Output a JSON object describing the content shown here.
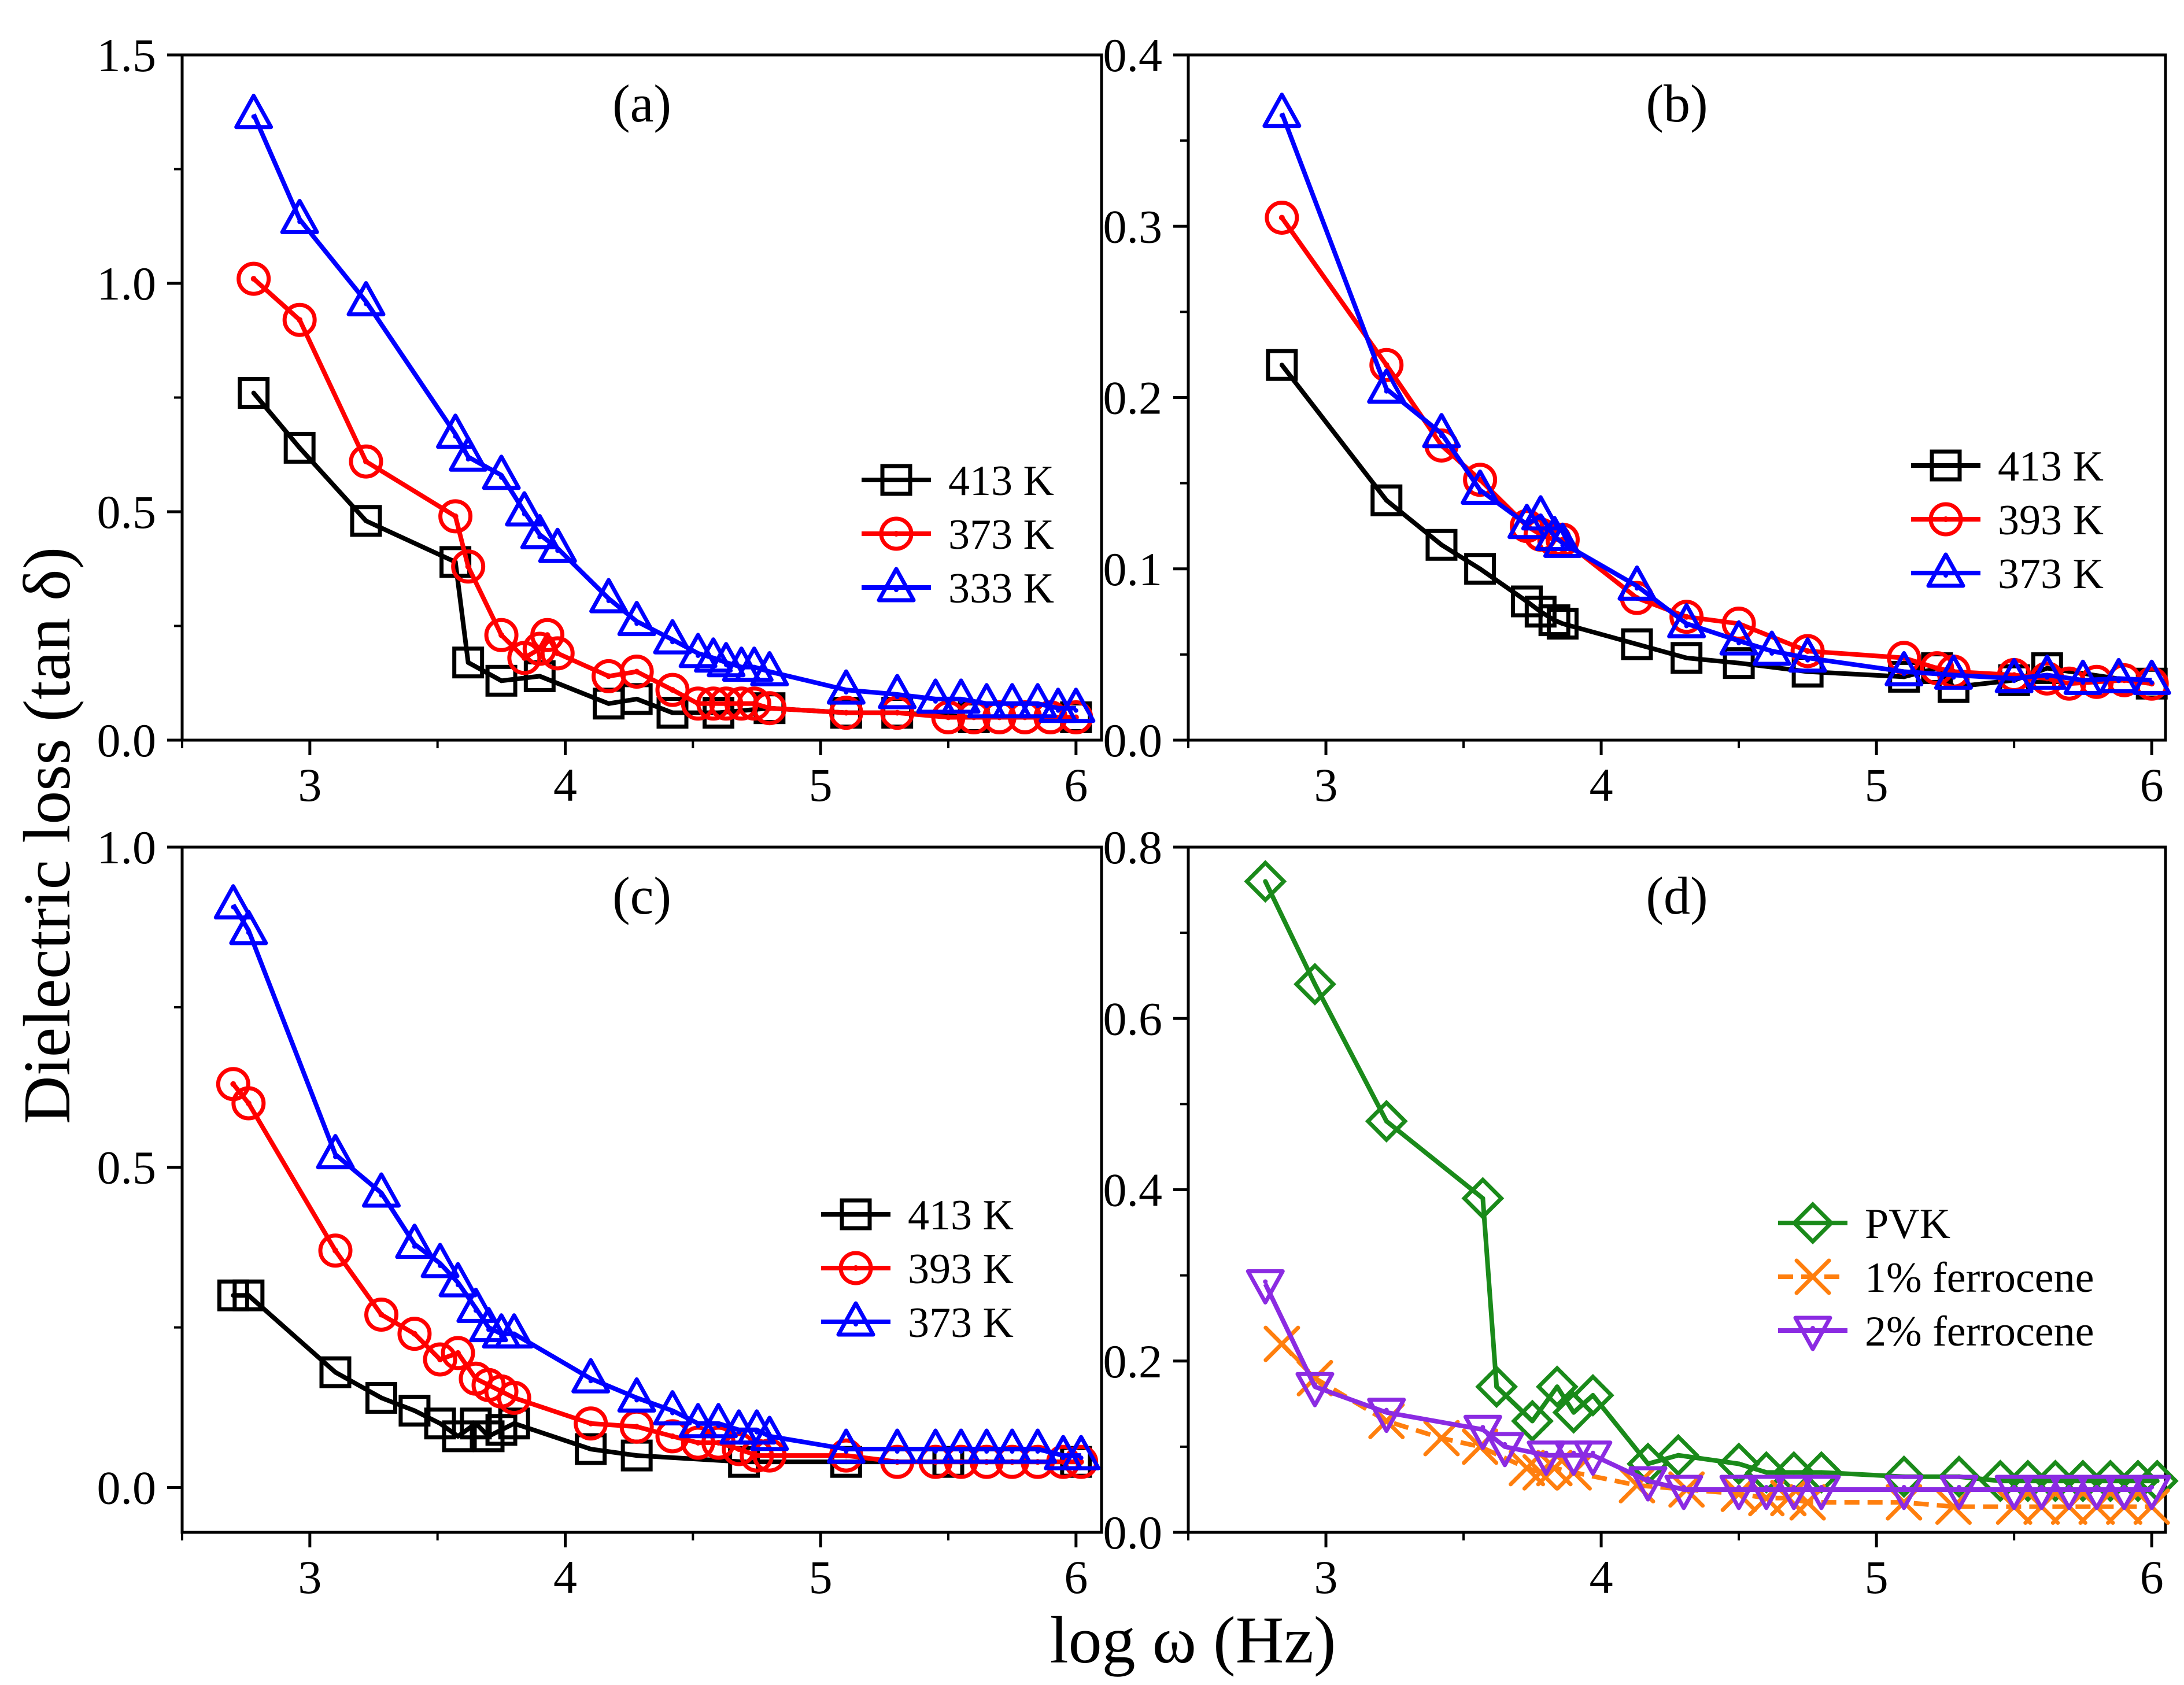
{
  "figure": {
    "ylabel": "Dielectric loss (tan δ)",
    "xlabel": "log ω (Hz)"
  },
  "chart_data": [
    {
      "id": "a",
      "type": "line",
      "title": "(a)",
      "xlim": [
        2.5,
        6.1
      ],
      "ylim": [
        0,
        1.5
      ],
      "xticks": [
        3,
        4,
        5,
        6
      ],
      "xtick_labels": [
        "3",
        "4",
        "5",
        "6"
      ],
      "yticks": [
        0,
        0.5,
        1.0,
        1.5
      ],
      "ytick_labels": [
        "0.0",
        "0.5",
        "1.0",
        "1.5"
      ],
      "legend_position": "middle-right",
      "series": [
        {
          "name": "413 K",
          "color": "#000000",
          "marker": "square",
          "dashed": false,
          "x": [
            2.78,
            2.96,
            3.22,
            3.57,
            3.62,
            3.75,
            3.9,
            4.17,
            4.28,
            4.42,
            4.6,
            4.8,
            5.1,
            5.3,
            5.6,
            6.0
          ],
          "y": [
            0.76,
            0.64,
            0.48,
            0.39,
            0.17,
            0.13,
            0.14,
            0.08,
            0.09,
            0.06,
            0.06,
            0.07,
            0.06,
            0.06,
            0.05,
            0.05
          ]
        },
        {
          "name": "373 K",
          "color": "#ff0000",
          "marker": "circle",
          "dashed": false,
          "x": [
            2.78,
            2.96,
            3.22,
            3.57,
            3.62,
            3.75,
            3.84,
            3.9,
            3.93,
            3.97,
            4.17,
            4.28,
            4.42,
            4.52,
            4.58,
            4.63,
            4.69,
            4.74,
            4.8,
            5.1,
            5.3,
            5.5,
            5.6,
            5.7,
            5.8,
            5.9,
            6.0
          ],
          "y": [
            1.01,
            0.92,
            0.61,
            0.49,
            0.38,
            0.23,
            0.18,
            0.2,
            0.23,
            0.19,
            0.14,
            0.15,
            0.11,
            0.08,
            0.08,
            0.08,
            0.08,
            0.08,
            0.07,
            0.06,
            0.06,
            0.05,
            0.05,
            0.05,
            0.05,
            0.05,
            0.05
          ]
        },
        {
          "name": "333 K",
          "color": "#0000ff",
          "marker": "triangle-up",
          "dashed": false,
          "x": [
            2.78,
            2.96,
            3.22,
            3.57,
            3.62,
            3.75,
            3.84,
            3.9,
            3.97,
            4.17,
            4.28,
            4.42,
            4.52,
            4.58,
            4.63,
            4.69,
            4.74,
            4.8,
            5.1,
            5.3,
            5.45,
            5.55,
            5.65,
            5.75,
            5.85,
            5.93,
            6.0
          ],
          "y": [
            1.37,
            1.14,
            0.96,
            0.67,
            0.62,
            0.58,
            0.5,
            0.45,
            0.42,
            0.31,
            0.26,
            0.22,
            0.19,
            0.18,
            0.17,
            0.16,
            0.16,
            0.15,
            0.11,
            0.1,
            0.09,
            0.09,
            0.08,
            0.08,
            0.08,
            0.07,
            0.07
          ]
        }
      ]
    },
    {
      "id": "b",
      "type": "line",
      "title": "(b)",
      "xlim": [
        2.5,
        6.05
      ],
      "ylim": [
        0,
        0.4
      ],
      "xticks": [
        3,
        4,
        5,
        6
      ],
      "xtick_labels": [
        "3",
        "4",
        "5",
        "6"
      ],
      "yticks": [
        0,
        0.1,
        0.2,
        0.3,
        0.4
      ],
      "ytick_labels": [
        "0.0",
        "0.1",
        "0.2",
        "0.3",
        "0.4"
      ],
      "legend_position": "top-right",
      "series": [
        {
          "name": "413 K",
          "color": "#000000",
          "marker": "square",
          "dashed": false,
          "x": [
            2.84,
            3.22,
            3.42,
            3.56,
            3.73,
            3.78,
            3.83,
            3.86,
            4.13,
            4.31,
            4.5,
            4.75,
            5.1,
            5.22,
            5.28,
            5.5,
            5.62,
            6.0
          ],
          "y": [
            0.219,
            0.14,
            0.114,
            0.1,
            0.081,
            0.075,
            0.07,
            0.068,
            0.056,
            0.048,
            0.045,
            0.04,
            0.037,
            0.042,
            0.031,
            0.035,
            0.042,
            0.033
          ]
        },
        {
          "name": "393 K",
          "color": "#ff0000",
          "marker": "circle",
          "dashed": false,
          "x": [
            2.84,
            3.22,
            3.42,
            3.56,
            3.73,
            3.78,
            3.83,
            3.86,
            4.13,
            4.31,
            4.5,
            4.75,
            5.1,
            5.22,
            5.28,
            5.5,
            5.62,
            5.7,
            5.8,
            5.9,
            6.0
          ],
          "y": [
            0.305,
            0.219,
            0.172,
            0.152,
            0.125,
            0.12,
            0.117,
            0.117,
            0.083,
            0.072,
            0.068,
            0.052,
            0.048,
            0.042,
            0.04,
            0.038,
            0.036,
            0.033,
            0.034,
            0.035,
            0.033
          ]
        },
        {
          "name": "373 K",
          "color": "#0000ff",
          "marker": "triangle-up",
          "dashed": false,
          "x": [
            2.84,
            3.22,
            3.42,
            3.56,
            3.73,
            3.78,
            3.83,
            3.86,
            4.13,
            4.31,
            4.5,
            4.62,
            4.75,
            5.1,
            5.28,
            5.5,
            5.62,
            5.75,
            5.88,
            6.0
          ],
          "y": [
            0.366,
            0.205,
            0.179,
            0.146,
            0.126,
            0.131,
            0.119,
            0.115,
            0.09,
            0.068,
            0.058,
            0.052,
            0.048,
            0.04,
            0.038,
            0.036,
            0.038,
            0.035,
            0.036,
            0.035
          ]
        }
      ]
    },
    {
      "id": "c",
      "type": "line",
      "title": "(c)",
      "xlim": [
        2.5,
        6.1
      ],
      "ylim": [
        -0.07,
        1.0
      ],
      "xticks": [
        3,
        4,
        5,
        6
      ],
      "xtick_labels": [
        "3",
        "4",
        "5",
        "6"
      ],
      "yticks": [
        0,
        0.5,
        1.0
      ],
      "ytick_labels": [
        "0.0",
        "0.5",
        "1.0"
      ],
      "legend_position": "middle-right",
      "series": [
        {
          "name": "413 K",
          "color": "#000000",
          "marker": "square",
          "dashed": false,
          "x": [
            2.7,
            2.76,
            3.1,
            3.28,
            3.41,
            3.51,
            3.58,
            3.65,
            3.7,
            3.75,
            3.8,
            4.1,
            4.28,
            4.7,
            5.1,
            5.5,
            6.0
          ],
          "y": [
            0.3,
            0.3,
            0.18,
            0.14,
            0.12,
            0.1,
            0.08,
            0.1,
            0.08,
            0.09,
            0.1,
            0.06,
            0.05,
            0.04,
            0.04,
            0.04,
            0.04
          ]
        },
        {
          "name": "393 K",
          "color": "#ff0000",
          "marker": "circle",
          "dashed": false,
          "x": [
            2.7,
            2.76,
            3.1,
            3.28,
            3.41,
            3.51,
            3.58,
            3.65,
            3.7,
            3.75,
            3.8,
            4.1,
            4.28,
            4.42,
            4.52,
            4.6,
            4.68,
            4.75,
            4.8,
            5.1,
            5.3,
            5.45,
            5.55,
            5.65,
            5.75,
            5.85,
            5.95,
            6.02
          ],
          "y": [
            0.63,
            0.6,
            0.37,
            0.27,
            0.24,
            0.2,
            0.21,
            0.17,
            0.16,
            0.15,
            0.14,
            0.1,
            0.095,
            0.08,
            0.07,
            0.07,
            0.06,
            0.05,
            0.05,
            0.05,
            0.04,
            0.04,
            0.04,
            0.04,
            0.04,
            0.04,
            0.04,
            0.04
          ]
        },
        {
          "name": "373 K",
          "color": "#0000ff",
          "marker": "triangle-up",
          "dashed": false,
          "x": [
            2.7,
            2.76,
            3.1,
            3.28,
            3.41,
            3.51,
            3.58,
            3.65,
            3.7,
            3.75,
            3.8,
            4.1,
            4.28,
            4.42,
            4.52,
            4.6,
            4.68,
            4.75,
            4.8,
            5.1,
            5.3,
            5.45,
            5.55,
            5.65,
            5.75,
            5.85,
            5.95,
            6.02
          ],
          "y": [
            0.91,
            0.87,
            0.52,
            0.46,
            0.38,
            0.35,
            0.32,
            0.28,
            0.25,
            0.24,
            0.24,
            0.17,
            0.14,
            0.12,
            0.1,
            0.1,
            0.09,
            0.09,
            0.08,
            0.06,
            0.06,
            0.06,
            0.06,
            0.06,
            0.06,
            0.06,
            0.05,
            0.05
          ]
        }
      ]
    },
    {
      "id": "d",
      "type": "line",
      "title": "(d)",
      "xlim": [
        2.5,
        6.05
      ],
      "ylim": [
        0,
        0.8
      ],
      "xticks": [
        3,
        4,
        5,
        6
      ],
      "xtick_labels": [
        "3",
        "4",
        "5",
        "6"
      ],
      "yticks": [
        0,
        0.2,
        0.4,
        0.6,
        0.8
      ],
      "ytick_labels": [
        "0.0",
        "0.2",
        "0.4",
        "0.6",
        "0.8"
      ],
      "legend_position": "middle-right",
      "series": [
        {
          "name": "PVK",
          "color": "#1a8a1a",
          "marker": "diamond",
          "dashed": false,
          "x": [
            2.78,
            2.96,
            3.22,
            3.57,
            3.62,
            3.75,
            3.84,
            3.9,
            3.97,
            4.17,
            4.28,
            4.5,
            4.6,
            4.7,
            4.8,
            5.1,
            5.3,
            5.45,
            5.55,
            5.65,
            5.75,
            5.85,
            5.95,
            6.02
          ],
          "y": [
            0.76,
            0.64,
            0.48,
            0.39,
            0.17,
            0.13,
            0.17,
            0.14,
            0.16,
            0.08,
            0.09,
            0.08,
            0.07,
            0.07,
            0.07,
            0.065,
            0.065,
            0.06,
            0.06,
            0.06,
            0.06,
            0.06,
            0.06,
            0.06
          ]
        },
        {
          "name": "1% ferrocene",
          "color": "#ff7f0e",
          "marker": "x",
          "dashed": true,
          "x": [
            2.84,
            2.96,
            3.22,
            3.42,
            3.56,
            3.73,
            3.78,
            3.83,
            3.9,
            4.13,
            4.31,
            4.5,
            4.6,
            4.68,
            4.75,
            5.1,
            5.28,
            5.5,
            5.6,
            5.7,
            5.8,
            5.9,
            6.0
          ],
          "y": [
            0.22,
            0.18,
            0.13,
            0.11,
            0.1,
            0.075,
            0.07,
            0.075,
            0.07,
            0.055,
            0.05,
            0.045,
            0.04,
            0.04,
            0.035,
            0.035,
            0.03,
            0.03,
            0.03,
            0.03,
            0.03,
            0.03,
            0.03
          ]
        },
        {
          "name": "2% ferrocene",
          "color": "#8b2be2",
          "marker": "triangle-down",
          "dashed": false,
          "x": [
            2.78,
            2.96,
            3.22,
            3.57,
            3.65,
            3.8,
            3.9,
            3.97,
            4.17,
            4.3,
            4.5,
            4.6,
            4.7,
            4.8,
            5.1,
            5.3,
            5.5,
            5.6,
            5.7,
            5.8,
            5.9,
            6.0
          ],
          "y": [
            0.29,
            0.17,
            0.14,
            0.12,
            0.1,
            0.09,
            0.09,
            0.09,
            0.06,
            0.05,
            0.05,
            0.05,
            0.05,
            0.05,
            0.05,
            0.05,
            0.05,
            0.05,
            0.05,
            0.05,
            0.05,
            0.05
          ]
        }
      ]
    }
  ]
}
